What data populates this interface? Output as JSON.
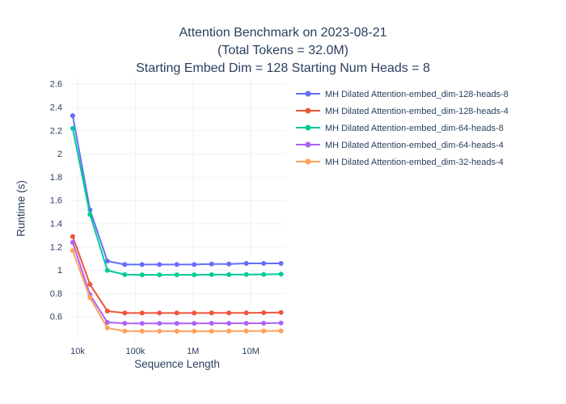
{
  "chart": {
    "title_lines": [
      "Attention Benchmark on 2023-08-21",
      "(Total Tokens = 32.0M)",
      "Starting Embed Dim = 128 Starting Num Heads = 8"
    ],
    "xlabel": "Sequence Length",
    "ylabel": "Runtime (s)"
  },
  "chart_data": {
    "type": "line",
    "title": "Attention Benchmark on 2023-08-21 (Total Tokens = 32.0M) Starting Embed Dim = 128 Starting Num Heads = 8",
    "xlabel": "Sequence Length",
    "ylabel": "Runtime (s)",
    "x_scale": "log",
    "grid": true,
    "legend_position": "top-right",
    "text_color": "#2a3f5f",
    "grid_color": "#eef2f7",
    "xlim": [
      7000,
      40000000
    ],
    "ylim": [
      0.4,
      2.65
    ],
    "x": [
      8192,
      16384,
      32768,
      65536,
      131072,
      262144,
      524288,
      1048576,
      2097152,
      4194304,
      8388608,
      16777216,
      33554432
    ],
    "x_ticks": [
      {
        "v": 10000,
        "label": "10k"
      },
      {
        "v": 100000,
        "label": "100k"
      },
      {
        "v": 1000000,
        "label": "1M"
      },
      {
        "v": 10000000,
        "label": "10M"
      }
    ],
    "y_ticks": [
      0.6,
      0.8,
      1,
      1.2,
      1.4,
      1.6,
      1.8,
      2,
      2.2,
      2.4,
      2.6
    ],
    "series": [
      {
        "name": "MH Dilated Attention-embed_dim-128-heads-8",
        "color": "#636efa",
        "values": [
          2.33,
          1.52,
          1.08,
          1.05,
          1.05,
          1.05,
          1.05,
          1.05,
          1.055,
          1.055,
          1.06,
          1.06,
          1.06
        ]
      },
      {
        "name": "MH Dilated Attention-embed_dim-128-heads-4",
        "color": "#ef553b",
        "values": [
          1.29,
          0.88,
          0.65,
          0.633,
          0.633,
          0.633,
          0.633,
          0.633,
          0.634,
          0.635,
          0.635,
          0.636,
          0.638
        ]
      },
      {
        "name": "MH Dilated Attention-embed_dim-64-heads-8",
        "color": "#00cc96",
        "values": [
          2.22,
          1.48,
          1.0,
          0.963,
          0.962,
          0.962,
          0.962,
          0.962,
          0.963,
          0.963,
          0.964,
          0.965,
          0.968
        ]
      },
      {
        "name": "MH Dilated Attention-embed_dim-64-heads-4",
        "color": "#ab63fa",
        "values": [
          1.24,
          0.79,
          0.553,
          0.545,
          0.544,
          0.544,
          0.544,
          0.544,
          0.545,
          0.545,
          0.545,
          0.546,
          0.548
        ]
      },
      {
        "name": "MH Dilated Attention-embed_dim-32-heads-4",
        "color": "#ffa15a",
        "values": [
          1.17,
          0.765,
          0.505,
          0.478,
          0.477,
          0.477,
          0.477,
          0.477,
          0.477,
          0.478,
          0.478,
          0.479,
          0.48
        ]
      }
    ]
  }
}
